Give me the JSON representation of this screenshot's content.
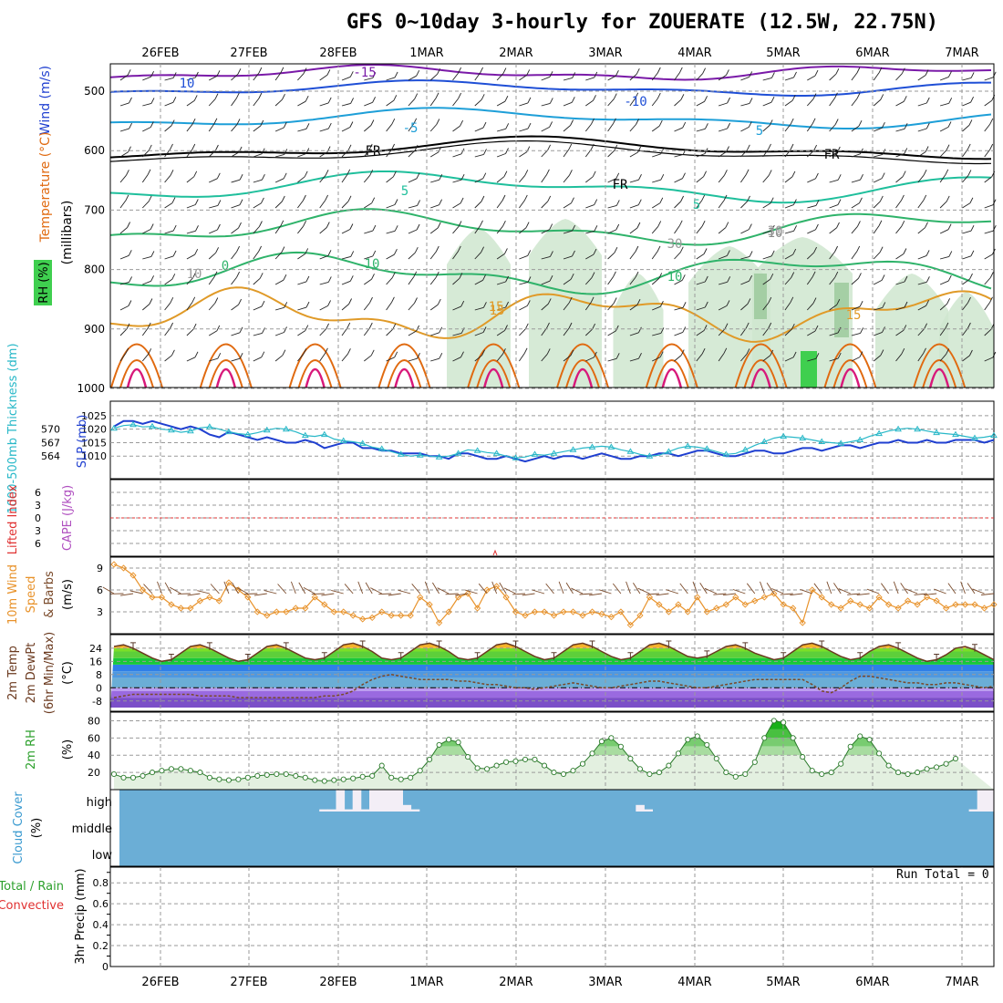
{
  "title": "GFS 0~10day 3-hourly for ZOUERATE (12.5W, 22.75N)",
  "run_total": "Run Total = 0",
  "date_labels": [
    "26FEB",
    "27FEB",
    "28FEB",
    "1MAR",
    "2MAR",
    "3MAR",
    "4MAR",
    "5MAR",
    "6MAR",
    "7MAR"
  ],
  "colors": {
    "frame": "#000000",
    "grid": "#9a9a9a",
    "temp_cold": "#7a1aa8",
    "temp_cool": "#1f4fd6",
    "temp_mid": "#1e9fd8",
    "temp_freeze": "#000000",
    "temp_warm_cyan": "#1fbf9c",
    "temp_green": "#2fb36a",
    "temp_orange": "#e09a28",
    "temp_hot": "#e06a10",
    "temp_magenta": "#d8197a",
    "rh_shade": "#cfe6cf",
    "slp": "#1f3fd0",
    "thickness": "#28b8c8",
    "cape": "#b050c0",
    "lifted": "#e03030",
    "wind_speed": "#e8922a",
    "dewpoint": "#7a4a2a",
    "rh2m": "#2ca02c",
    "cloud": "#6baed6",
    "cloud_gap": "#f3eef6",
    "precip_total": "#2ca02c",
    "precip_conv": "#e03030"
  },
  "panels": {
    "upper": {
      "label_wind": "Wind (m/s)",
      "label_temp": "Temperature (°C)",
      "label_rh": "RH (%)",
      "label_mb": "(millibars)",
      "levels": [
        "500",
        "600",
        "700",
        "800",
        "900",
        "1000"
      ],
      "contour_labels": [
        "10",
        "15",
        "-15",
        "-10",
        "-5",
        "FR",
        "FR",
        "FR",
        "5",
        "5",
        "0",
        "10",
        "10",
        "5",
        "15",
        "15",
        "10",
        "30",
        "30",
        "10"
      ]
    },
    "slp_thick": {
      "label_thick": "1000-500mb Thickness (dm)",
      "label_slp": "SLP (mb)",
      "thick_ticks": [
        "570",
        "567",
        "564"
      ],
      "slp_ticks": [
        "1025",
        "1020",
        "1015",
        "1010"
      ]
    },
    "cape_li": {
      "label_li": "Lifted Index",
      "label_cape": "CAPE (J/kg)",
      "ticks": [
        "-6",
        "-3",
        "0",
        "3",
        "6"
      ]
    },
    "wind10m": {
      "label_a": "10m Wind",
      "label_b": "Speed",
      "label_c": "& Barbs",
      "unit": "(m/s)",
      "ticks": [
        "9",
        "6",
        "3"
      ]
    },
    "temp2m": {
      "label_a": "2m Temp",
      "label_b": "2m DewPt",
      "label_c": "(6hr Min/Max)",
      "unit": "(°C)",
      "ticks": [
        "24",
        "16",
        "8",
        "0",
        "-8"
      ]
    },
    "rh2m": {
      "label": "2m RH",
      "unit": "(%)",
      "ticks": [
        "80",
        "60",
        "40",
        "20"
      ]
    },
    "cloud": {
      "label": "Cloud Cover",
      "unit": "(%)",
      "rows": [
        "high",
        "middle",
        "low"
      ]
    },
    "precip": {
      "label_a": "Total / Rain",
      "label_b": "Convective",
      "label_c": "3hr Precip (mm)",
      "ticks": [
        "0.8",
        "0.6",
        "0.4",
        "0.2",
        "0"
      ]
    }
  },
  "chart_data": [
    {
      "type": "line",
      "panel": "slp_thick",
      "x_unit": "3-hourly steps from 25FEB 15Z",
      "series": [
        {
          "name": "SLP (mb)",
          "values": [
            1021,
            1023,
            1023,
            1022,
            1023,
            1022,
            1021,
            1020,
            1021,
            1020,
            1018,
            1017,
            1019,
            1018,
            1017,
            1016,
            1017,
            1016,
            1015,
            1015,
            1016,
            1015,
            1013,
            1014,
            1015,
            1015,
            1013,
            1013,
            1012,
            1012,
            1011,
            1011,
            1011,
            1010,
            1010,
            1009,
            1011,
            1011,
            1010,
            1009,
            1009,
            1010,
            1009,
            1008,
            1009,
            1010,
            1009,
            1010,
            1010,
            1009,
            1010,
            1011,
            1010,
            1009,
            1009,
            1010,
            1010,
            1011,
            1011,
            1010,
            1011,
            1012,
            1012,
            1011,
            1010,
            1010,
            1011,
            1012,
            1012,
            1011,
            1011,
            1012,
            1013,
            1013,
            1012,
            1013,
            1014,
            1014,
            1013,
            1014,
            1015,
            1015,
            1016,
            1015,
            1015,
            1016,
            1015,
            1015,
            1016,
            1016,
            1016,
            1015,
            1016
          ]
        },
        {
          "name": "Thickness (dm)",
          "values": [
            570.2,
            570.8,
            571.0,
            570.5,
            570.6,
            570.0,
            569.8,
            569.3,
            569.6,
            570.3,
            570.5,
            570.0,
            569.4,
            569.0,
            568.8,
            569.2,
            569.8,
            570.2,
            570.0,
            569.4,
            568.6,
            568.4,
            568.8,
            567.8,
            567.4,
            567.2,
            566.8,
            566.0,
            565.6,
            565.0,
            564.4,
            564.0,
            564.2,
            564.0,
            563.8,
            564.0,
            564.6,
            565.4,
            565.2,
            564.8,
            564.6,
            564.0,
            563.6,
            563.8,
            564.4,
            564.2,
            564.6,
            565.0,
            565.4,
            565.8,
            566.0,
            566.2,
            566.0,
            565.4,
            565.0,
            564.4,
            564.0,
            564.2,
            565.0,
            565.8,
            566.2,
            566.0,
            565.6,
            565.0,
            564.4,
            564.6,
            565.4,
            566.4,
            567.2,
            568.0,
            568.4,
            568.2,
            568.0,
            567.6,
            567.2,
            567.0,
            566.8,
            567.2,
            567.6,
            568.4,
            569.0,
            569.6,
            570.0,
            570.2,
            570.0,
            569.6,
            569.2,
            569.0,
            568.8,
            568.4,
            568.0,
            568.2,
            568.6
          ]
        }
      ],
      "ylim_slp": [
        1005,
        1027
      ]
    },
    {
      "type": "line",
      "panel": "wind10m",
      "series": [
        {
          "name": "10m Wind Speed (m/s)",
          "values": [
            9.5,
            9,
            8,
            6,
            5,
            5,
            4,
            3.5,
            3.5,
            4.5,
            5,
            4.5,
            7,
            6,
            5,
            3,
            2.5,
            3,
            3,
            3.5,
            3.5,
            5,
            4,
            3,
            3,
            2.5,
            2,
            2.2,
            3,
            2.5,
            2.5,
            2.5,
            5,
            4,
            1.5,
            3,
            5,
            5.5,
            3.5,
            6,
            6.5,
            5,
            3,
            2.5,
            3,
            3,
            2.5,
            3,
            3,
            2.5,
            3,
            2.7,
            2.3,
            3,
            1.2,
            2.5,
            5,
            4,
            3,
            4,
            3,
            5,
            3,
            3.5,
            4,
            5,
            4,
            4.5,
            5,
            5.5,
            4,
            3.5,
            1.5,
            6,
            5,
            4,
            3.5,
            4.5,
            4,
            3.5,
            5,
            4,
            3.5,
            4.5,
            4,
            5,
            4.5,
            3.5,
            4,
            4,
            4,
            3.5,
            4
          ]
        }
      ],
      "ylim": [
        0,
        10.5
      ]
    },
    {
      "type": "area",
      "panel": "temp2m",
      "series": [
        {
          "name": "2m Temp (°C)",
          "values": [
            25,
            26,
            24,
            21,
            18,
            16,
            17,
            21,
            25,
            26,
            24,
            21,
            18,
            16,
            17,
            21,
            25,
            26,
            24,
            21,
            18,
            17,
            18,
            22,
            26,
            27,
            25,
            22,
            18,
            17,
            18,
            22,
            26,
            27,
            25,
            22,
            18,
            17,
            18,
            22,
            26,
            27,
            25,
            22,
            19,
            17,
            18,
            22,
            26,
            27,
            25,
            22,
            19,
            17,
            18,
            22,
            26,
            27,
            25,
            22,
            19,
            18,
            19,
            22,
            25,
            26,
            24,
            21,
            19,
            17,
            18,
            22,
            26,
            27,
            25,
            22,
            19,
            17,
            18,
            22,
            25,
            26,
            24,
            21,
            18,
            16,
            17,
            20,
            24,
            25,
            23,
            20,
            17
          ]
        },
        {
          "name": "2m DewPt (°C)",
          "values": [
            -6,
            -5,
            -4,
            -4,
            -4,
            -4,
            -4,
            -4,
            -4,
            -5,
            -5,
            -5,
            -5,
            -6,
            -6,
            -6,
            -6,
            -6,
            -6,
            -6,
            -6,
            -6,
            -5,
            -5,
            -4,
            -2,
            2,
            5,
            7,
            8,
            7,
            6,
            5,
            5,
            5,
            5,
            4,
            4,
            3,
            2,
            2,
            1,
            0,
            0,
            -1,
            0,
            1,
            2,
            3,
            2,
            1,
            0,
            0,
            1,
            2,
            3,
            4,
            4,
            3,
            2,
            1,
            0,
            0,
            1,
            2,
            3,
            4,
            5,
            5,
            5,
            5,
            5,
            5,
            2,
            -2,
            -3,
            0,
            4,
            7,
            7,
            6,
            5,
            4,
            3,
            3,
            2,
            2,
            3,
            3,
            2,
            1,
            0,
            1
          ]
        }
      ],
      "ylim": [
        -12,
        30
      ]
    },
    {
      "type": "area",
      "panel": "rh2m",
      "series": [
        {
          "name": "2m RH (%)",
          "values": [
            18,
            14,
            14,
            16,
            20,
            22,
            24,
            24,
            22,
            20,
            14,
            12,
            11,
            12,
            14,
            16,
            17,
            18,
            18,
            16,
            14,
            11,
            10,
            11,
            12,
            13,
            15,
            16,
            28,
            14,
            12,
            14,
            22,
            35,
            52,
            58,
            55,
            38,
            25,
            24,
            28,
            32,
            33,
            35,
            35,
            28,
            20,
            18,
            22,
            30,
            42,
            56,
            60,
            50,
            36,
            24,
            18,
            20,
            28,
            42,
            58,
            62,
            52,
            36,
            20,
            15,
            18,
            32,
            60,
            80,
            78,
            60,
            38,
            22,
            18,
            20,
            30,
            50,
            62,
            58,
            42,
            28,
            20,
            18,
            20,
            24,
            26,
            30,
            36
          ]
        }
      ],
      "ylim": [
        0,
        90
      ]
    },
    {
      "type": "bar",
      "panel": "cloud",
      "series": [
        {
          "name": "High cloud (%)",
          "values": [
            0,
            0,
            0,
            0,
            0,
            0,
            0,
            0,
            0,
            0,
            0,
            0,
            0,
            0,
            0,
            0,
            0,
            0,
            0,
            0,
            0,
            0,
            0,
            0,
            10,
            10,
            100,
            10,
            100,
            10,
            100,
            100,
            100,
            100,
            30,
            10,
            0,
            0,
            0,
            0,
            0,
            0,
            0,
            0,
            0,
            0,
            0,
            0,
            0,
            0,
            0,
            0,
            0,
            0,
            0,
            0,
            0,
            0,
            0,
            0,
            0,
            0,
            30,
            10,
            0,
            0,
            0,
            0,
            0,
            0,
            0,
            0,
            0,
            0,
            0,
            0,
            0,
            0,
            0,
            0,
            0,
            0,
            0,
            0,
            0,
            0,
            0,
            0,
            0,
            0,
            0,
            0,
            0,
            0,
            0,
            0,
            0,
            0,
            0,
            0,
            0,
            0,
            10,
            100,
            100
          ]
        }
      ],
      "ylim": [
        0,
        100
      ]
    },
    {
      "type": "bar",
      "panel": "precip",
      "series": [
        {
          "name": "3hr Precip (mm)",
          "values": []
        }
      ],
      "ylim": [
        0,
        0.95
      ]
    },
    {
      "type": "line",
      "panel": "cape_li",
      "series": [
        {
          "name": "Lifted Index",
          "values": []
        }
      ],
      "ylim": [
        -6,
        6
      ]
    }
  ]
}
